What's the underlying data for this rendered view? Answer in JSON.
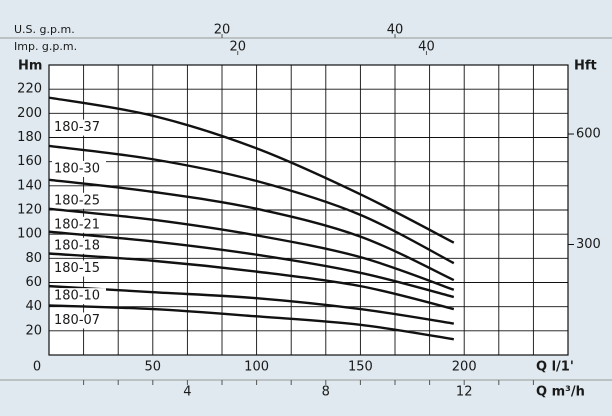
{
  "chart_data": {
    "type": "line",
    "y_label": "Hm",
    "y2_label": "Hft",
    "x_label": "Q l/1'",
    "x2_label": "Q m³/h",
    "top_label": "U.S. g.p.m.",
    "top2_label": "Imp. g.p.m.",
    "x": [
      0,
      50,
      100,
      150,
      195
    ],
    "xlim": [
      0,
      250
    ],
    "xticks": [
      0,
      50,
      100,
      150,
      200
    ],
    "x2lim": [
      0,
      15
    ],
    "x2ticks": [
      4,
      8,
      12
    ],
    "toplim": [
      0,
      60
    ],
    "topticks": [
      20,
      40
    ],
    "top2lim": [
      0,
      55
    ],
    "top2ticks": [
      20,
      40
    ],
    "ylim": [
      0,
      240
    ],
    "yticks": [
      20,
      40,
      60,
      80,
      100,
      120,
      140,
      160,
      180,
      200,
      220
    ],
    "y2lim": [
      0,
      787.4
    ],
    "y2ticks": [
      300,
      600
    ],
    "grid": true,
    "series": [
      {
        "name": "180-37",
        "color": "#111111",
        "values": [
          213,
          198,
          171,
          133,
          93
        ]
      },
      {
        "name": "180-30",
        "color": "#111111",
        "values": [
          173,
          162,
          144,
          116,
          76
        ]
      },
      {
        "name": "180-25",
        "color": "#111111",
        "values": [
          145,
          135,
          121,
          98,
          62
        ]
      },
      {
        "name": "180-21",
        "color": "#111111",
        "values": [
          121,
          112,
          99,
          81,
          54
        ]
      },
      {
        "name": "180-18",
        "color": "#111111",
        "values": [
          102,
          94,
          83,
          68,
          48
        ]
      },
      {
        "name": "180-15",
        "color": "#111111",
        "values": [
          84,
          78,
          69,
          57,
          38
        ]
      },
      {
        "name": "180-10",
        "color": "#111111",
        "values": [
          57,
          52,
          47,
          38,
          26
        ]
      },
      {
        "name": "180-07",
        "color": "#111111",
        "values": [
          41,
          38,
          32,
          25,
          13
        ]
      }
    ]
  }
}
